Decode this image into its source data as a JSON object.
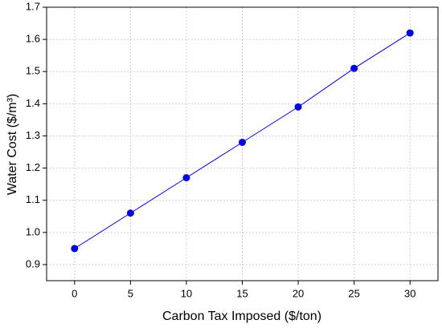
{
  "chart_data": {
    "type": "line",
    "x_label": "Carbon Tax Imposed ($/ton)",
    "y_label": "Water Cost ($/m³)",
    "x": [
      0,
      5,
      10,
      15,
      20,
      25,
      30
    ],
    "series": [
      {
        "name": "Water Cost",
        "color": "#0000ee",
        "values": [
          0.95,
          1.06,
          1.17,
          1.28,
          1.39,
          1.51,
          1.62
        ]
      }
    ],
    "xlim": [
      -2.5,
      32.5
    ],
    "xticks": [
      0,
      5,
      10,
      15,
      20,
      25,
      30
    ],
    "ylim": [
      0.85,
      1.7
    ],
    "yticks": [
      0.9,
      {
        "value": 1,
        "label": "1.0"
      },
      1.1,
      1.2,
      1.3,
      1.4,
      1.5,
      1.6,
      1.7
    ],
    "grid": true
  }
}
